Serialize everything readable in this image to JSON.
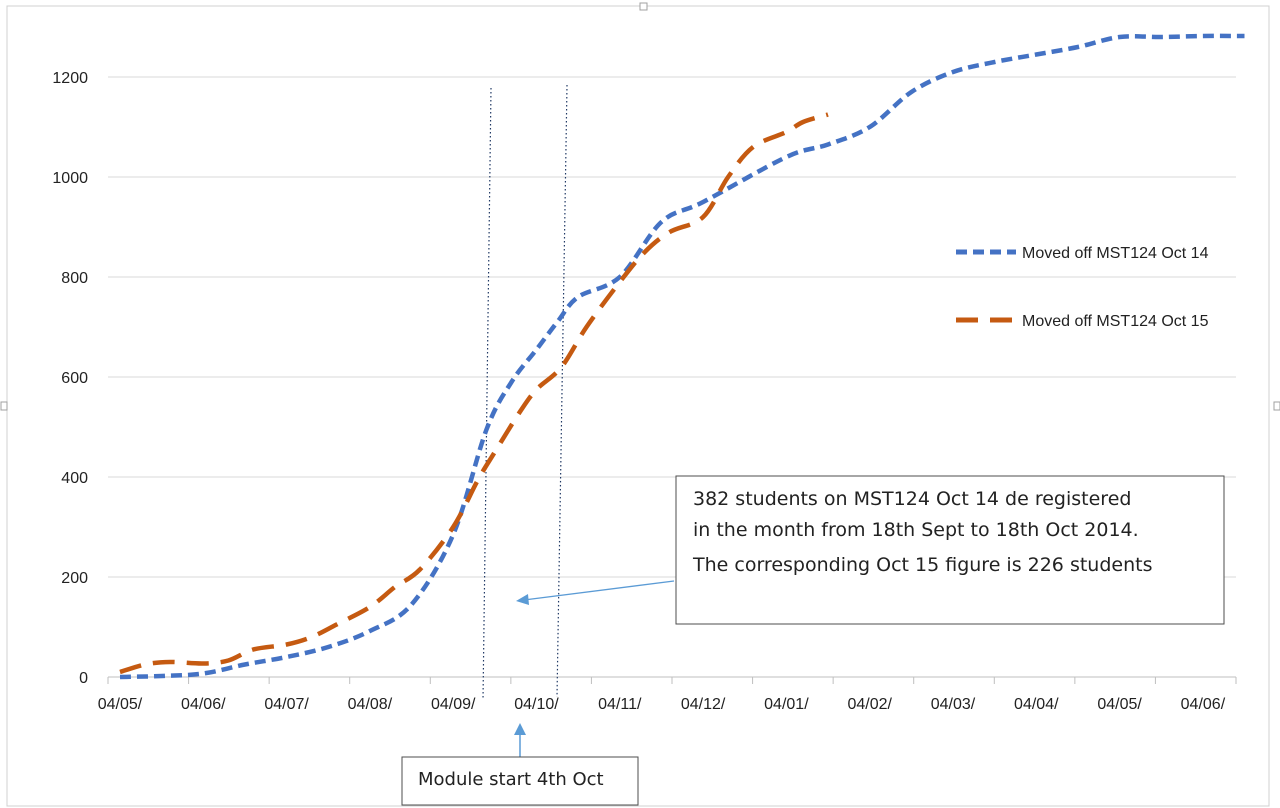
{
  "chart_data": {
    "type": "line",
    "title": "",
    "xlabel": "",
    "ylabel": "",
    "ylim": [
      0,
      1200
    ],
    "yticks": [
      "0",
      "200",
      "400",
      "600",
      "800",
      "1000",
      "1200"
    ],
    "categories": [
      "04/05/",
      "04/06/",
      "04/07/",
      "04/08/",
      "04/09/",
      "04/10/",
      "04/11/",
      "04/12/",
      "04/01/",
      "04/02/",
      "04/03/",
      "04/04/",
      "04/05/",
      "04/06/"
    ],
    "grid": "horizontal",
    "legend_position": "right",
    "series": [
      {
        "name": "Moved off MST124  Oct 14",
        "color": "#4472C4",
        "dash": "dashed",
        "x": [
          0,
          0.5,
          1.0,
          1.5,
          2.0,
          2.5,
          3.0,
          3.5,
          4.0,
          4.4,
          4.7,
          5.0,
          5.25,
          5.5,
          6.0,
          6.5,
          7.0,
          8.0,
          8.5,
          9.0,
          9.5,
          10.0,
          10.5,
          11.0,
          11.5,
          12.0,
          12.5,
          13.0,
          13.5
        ],
        "y": [
          0,
          2,
          7,
          25,
          40,
          60,
          92,
          145,
          285,
          495,
          590,
          655,
          710,
          760,
          800,
          910,
          950,
          1040,
          1065,
          1100,
          1170,
          1210,
          1230,
          1245,
          1260,
          1280,
          1280,
          1282,
          1282
        ]
      },
      {
        "name": "Moved off MST124  Oct 15",
        "color": "#C55A11",
        "dash": "longdash",
        "x": [
          0,
          0.3,
          0.6,
          1.0,
          1.3,
          1.6,
          2.0,
          2.3,
          2.6,
          3.0,
          3.3,
          3.6,
          4.0,
          4.3,
          4.5,
          4.8,
          5.0,
          5.3,
          5.6,
          6.0,
          6.3,
          6.6,
          7.0,
          7.3,
          7.6,
          8.0,
          8.2,
          8.5
        ],
        "y": [
          10,
          25,
          30,
          27,
          33,
          55,
          65,
          80,
          105,
          140,
          180,
          215,
          300,
          395,
          450,
          530,
          575,
          620,
          700,
          790,
          850,
          890,
          920,
          1000,
          1060,
          1090,
          1110,
          1125
        ]
      }
    ],
    "annotations": {
      "callout_lines": [
        "382 students  on MST124  Oct 14 de registered",
        "in the month  from 18th Sept to 18th Oct 2014.",
        "The corresponding Oct 15 figure is 226 students"
      ],
      "module_start_label": "Module start 4th Oct"
    }
  }
}
